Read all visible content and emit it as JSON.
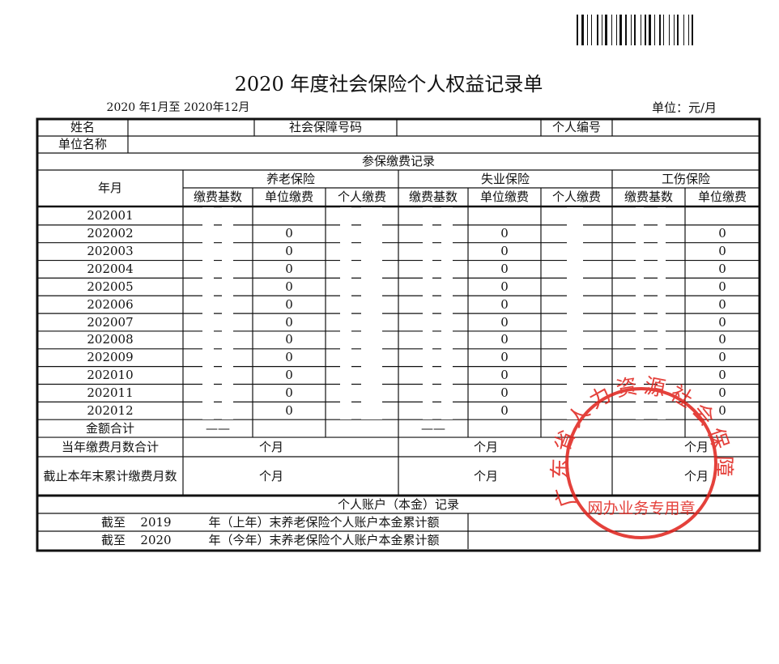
{
  "header": {
    "title": "2020 年度社会保险个人权益记录单",
    "period": "2020 年1月至 2020年12月",
    "unit": "单位：元/月"
  },
  "table": {
    "name_label": "姓名",
    "ssn_label": "社会保障号码",
    "id_label": "个人编号",
    "employer_label": "单位名称",
    "section_title": "参保缴费记录",
    "month_header": "年月",
    "groups": [
      "养老保险",
      "失业保险",
      "工伤保险"
    ],
    "subheaders": [
      "缴费基数",
      "单位缴费",
      "个人缴费",
      "缴费基数",
      "单位缴费",
      "个人缴费",
      "缴费基数",
      "单位缴费"
    ],
    "rows": [
      {
        "month": "202001"
      },
      {
        "month": "202002",
        "pension_unit": 0,
        "unemployment_unit": 0,
        "injury_unit": 0
      },
      {
        "month": "202003",
        "pension_unit": 0,
        "unemployment_unit": 0,
        "injury_unit": 0
      },
      {
        "month": "202004",
        "pension_unit": 0,
        "unemployment_unit": 0,
        "injury_unit": 0
      },
      {
        "month": "202005",
        "pension_unit": 0,
        "unemployment_unit": 0,
        "injury_unit": 0
      },
      {
        "month": "202006",
        "pension_unit": 0,
        "unemployment_unit": 0,
        "injury_unit": 0
      },
      {
        "month": "202007",
        "pension_unit": 0,
        "unemployment_unit": 0,
        "injury_unit": 0
      },
      {
        "month": "202008",
        "pension_unit": 0,
        "unemployment_unit": 0,
        "injury_unit": 0
      },
      {
        "month": "202009",
        "pension_unit": 0,
        "unemployment_unit": 0,
        "injury_unit": 0
      },
      {
        "month": "202010",
        "pension_unit": 0,
        "unemployment_unit": 0,
        "injury_unit": 0
      },
      {
        "month": "202011",
        "pension_unit": 0,
        "unemployment_unit": 0,
        "injury_unit": 0
      },
      {
        "month": "202012",
        "pension_unit": 0,
        "unemployment_unit": 0,
        "injury_unit": 0
      }
    ],
    "total_label": "金额合计",
    "total_pension_base": "——",
    "total_unemployment_base": "——",
    "months_label": "当年缴费月数合计",
    "months_units": [
      "个月",
      "个月",
      "个月"
    ],
    "cumulative_label": "截止本年末累计缴费月数",
    "cumulative_units": [
      "个月",
      "个月",
      "个月"
    ]
  },
  "account": {
    "title": "个人账户（本金）记录",
    "rows": [
      {
        "prefix": "截至",
        "year": "2019",
        "text": "年（上年）末养老保险个人账户本金累计额"
      },
      {
        "prefix": "截至",
        "year": "2020",
        "text": "年（今年）末养老保险个人账户本金累计额"
      }
    ]
  },
  "seal": {
    "arc": "广东省人力资源社会保障",
    "bottom": "网办业务专用章"
  }
}
